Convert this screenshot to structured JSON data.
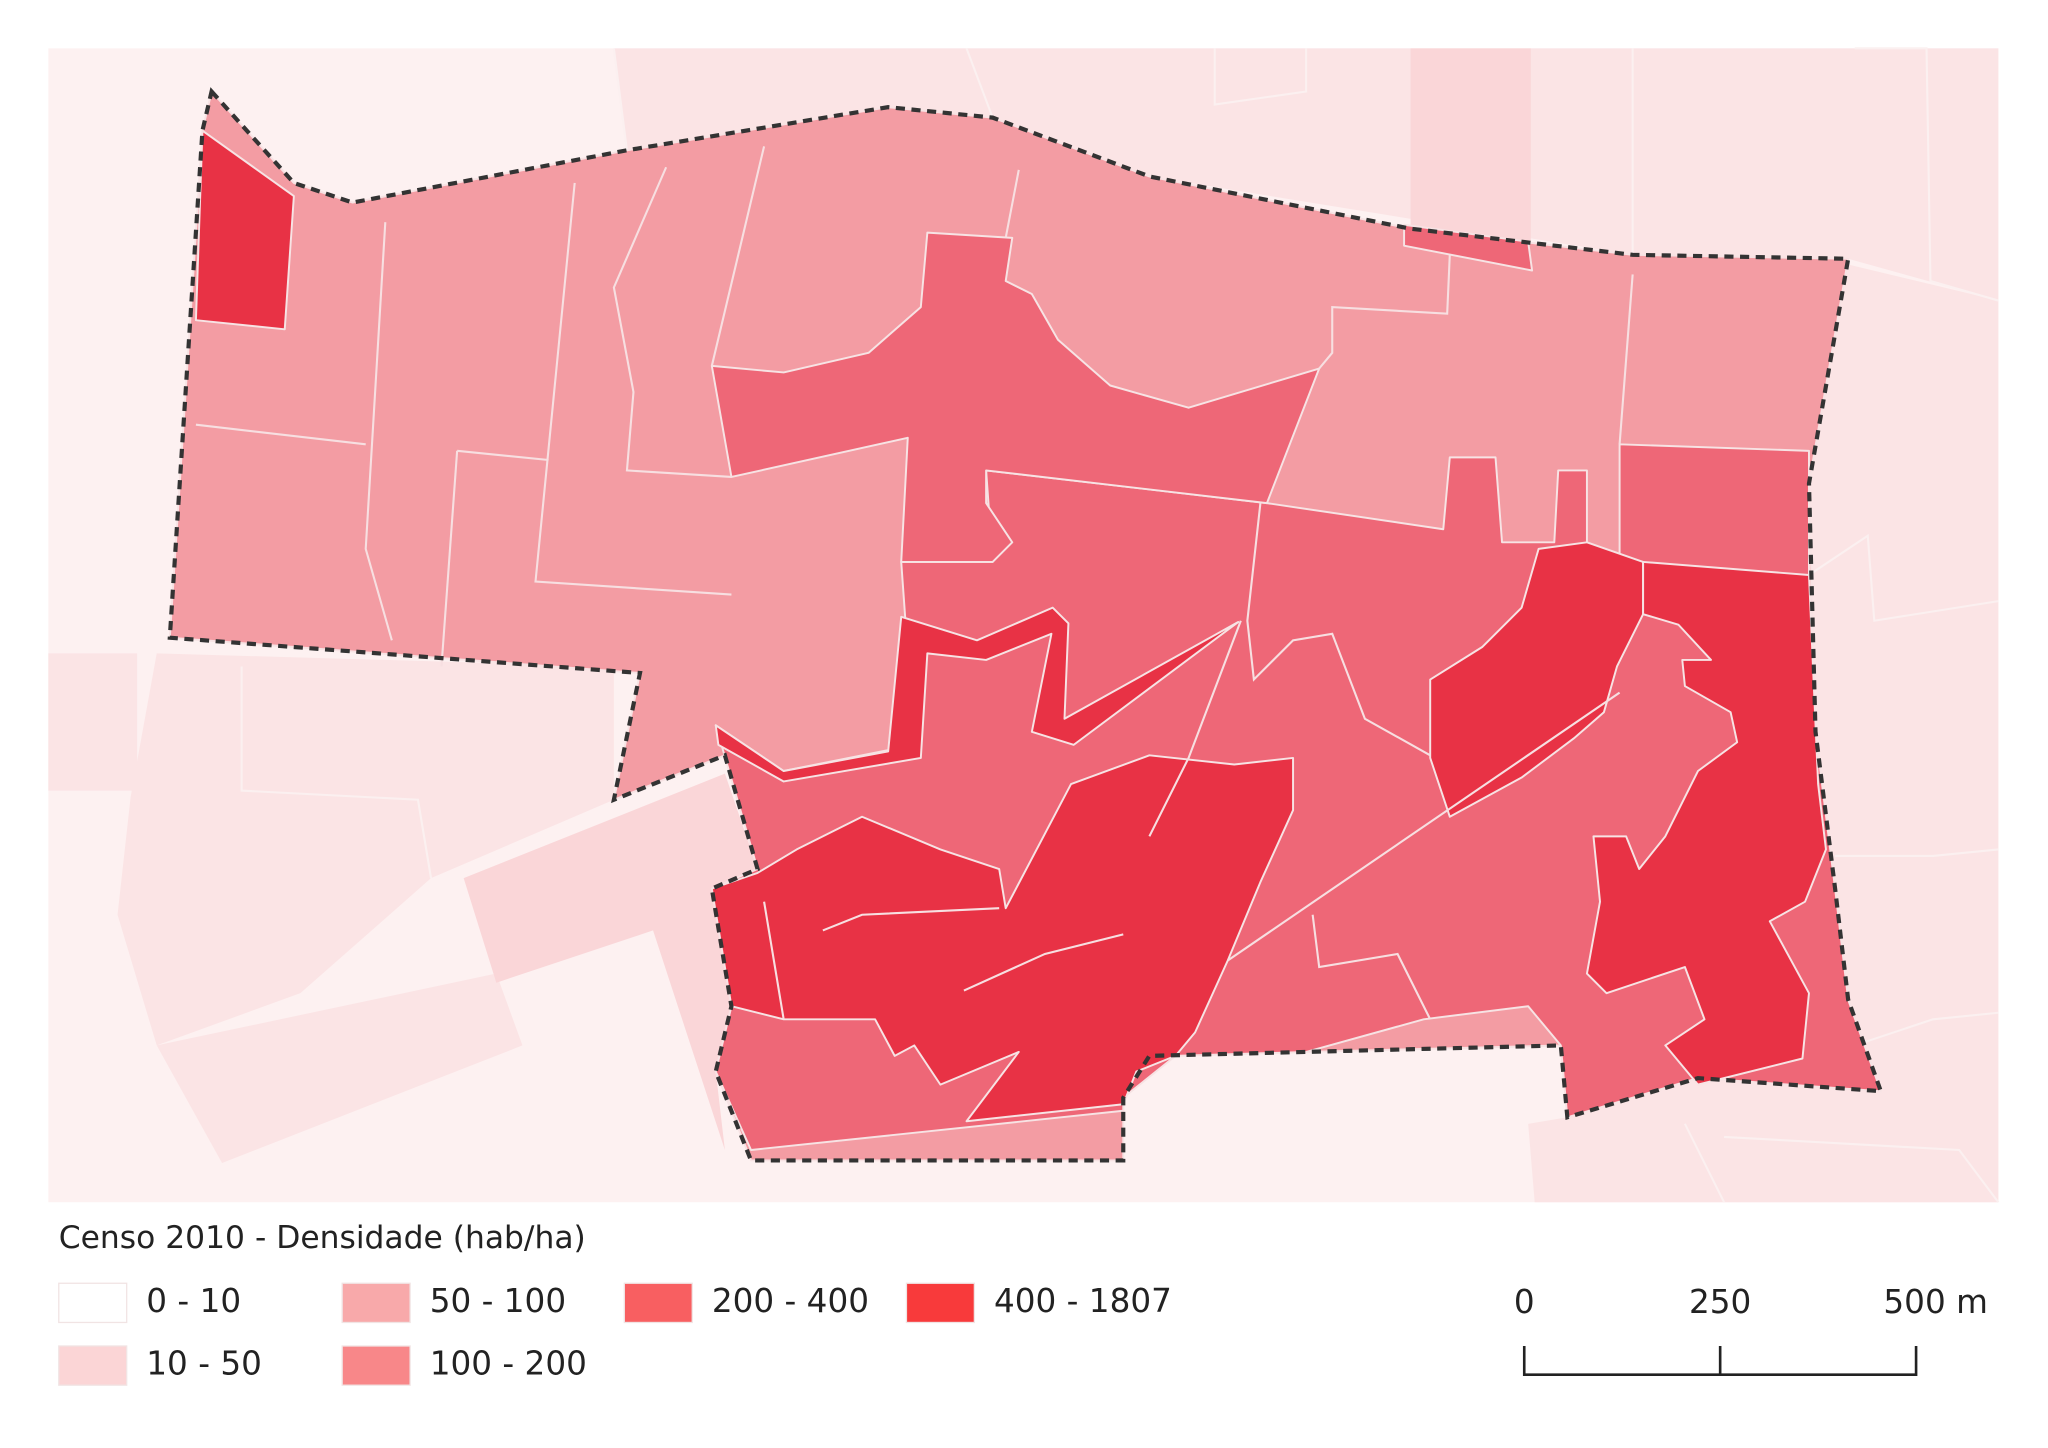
{
  "legend": {
    "title": "Censo 2010 - Densidade (hab/ha)",
    "items": [
      {
        "label": "0 - 10",
        "color": "#ffffff"
      },
      {
        "label": "10 - 50",
        "color": "#fbd5d6"
      },
      {
        "label": "50 - 100",
        "color": "#f8a9aa"
      },
      {
        "label": "100 - 200",
        "color": "#f88789"
      },
      {
        "label": "200 - 400",
        "color": "#f85f61"
      },
      {
        "label": "400 - 1807",
        "color": "#f83a3b"
      }
    ]
  },
  "scale_bar": {
    "labels": [
      "0",
      "250",
      "500 m"
    ]
  }
}
